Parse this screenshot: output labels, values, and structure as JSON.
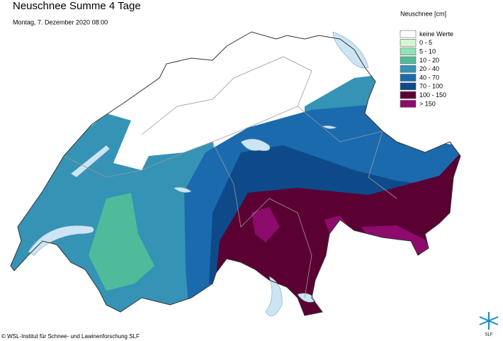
{
  "title": "Neuschnee Summe 4 Tage",
  "subtitle": "Montag, 7. Dezember 2020 08:00",
  "legend": {
    "title": "Neuschnee [cm]",
    "items": [
      {
        "label": "keine Werte",
        "color": "#ffffff"
      },
      {
        "label": "0 - 5",
        "color": "#d4f7d0"
      },
      {
        "label": "5 - 10",
        "color": "#8fe3b4"
      },
      {
        "label": "10 - 20",
        "color": "#4fbb9a"
      },
      {
        "label": "20 - 40",
        "color": "#3593b6"
      },
      {
        "label": "40 - 70",
        "color": "#1b6aae"
      },
      {
        "label": "70 - 100",
        "color": "#0e4a8a"
      },
      {
        "label": "100 - 150",
        "color": "#5b0033"
      },
      {
        "label": "> 150",
        "color": "#8c0b6c"
      }
    ]
  },
  "copyright": "© WSL-Institut für Schnee- und Lawinenforschung SLF",
  "logo": "SLF"
}
